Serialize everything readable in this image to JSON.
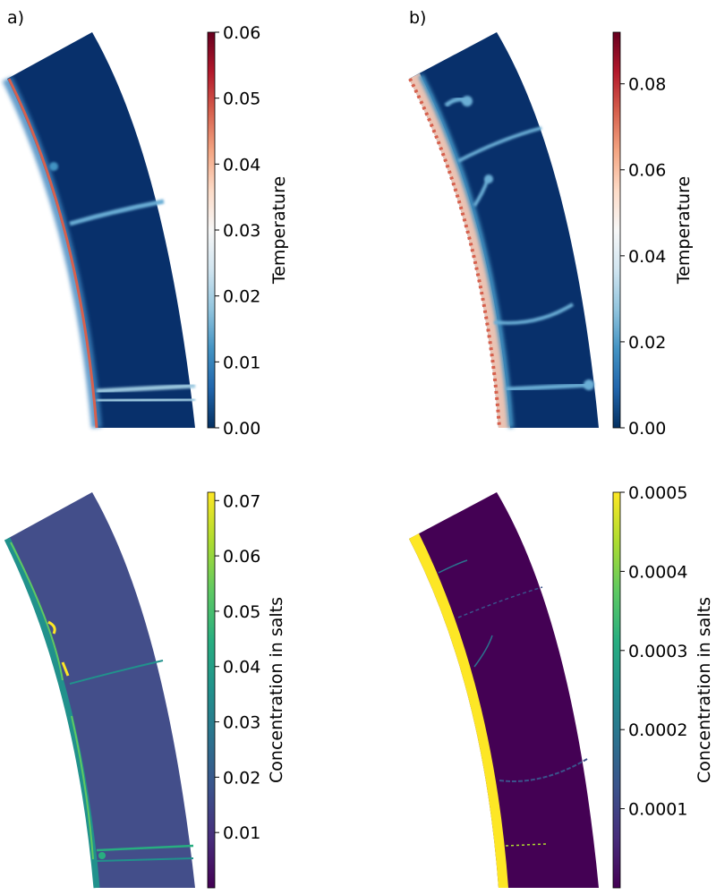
{
  "panel_labels": {
    "a": "a)",
    "b": "b)"
  },
  "chart_data": [
    {
      "type": "heatmap",
      "panel": "a)",
      "colorbar_label": "Temperature",
      "colormap": "RdBu_r",
      "range": [
        0.0,
        0.06
      ],
      "ticks": [
        0.0,
        0.01,
        0.02,
        0.03,
        0.04,
        0.05,
        0.06
      ],
      "tick_labels": [
        "0.00",
        "0.01",
        "0.02",
        "0.03",
        "0.04",
        "0.05",
        "0.06"
      ],
      "background_value": 0.0,
      "boundary_max_value": 0.06
    },
    {
      "type": "heatmap",
      "panel": "b)",
      "colorbar_label": "Temperature",
      "colormap": "RdBu_r",
      "range": [
        0.0,
        0.092
      ],
      "ticks": [
        0.0,
        0.02,
        0.04,
        0.06,
        0.08
      ],
      "tick_labels": [
        "0.00",
        "0.02",
        "0.04",
        "0.06",
        "0.08"
      ],
      "background_value": 0.0,
      "boundary_max_value": 0.092
    },
    {
      "type": "heatmap",
      "panel": "a)",
      "colorbar_label": "Concentration in salts",
      "colormap": "viridis",
      "range": [
        0.0,
        0.0715
      ],
      "ticks": [
        0.01,
        0.02,
        0.03,
        0.04,
        0.05,
        0.06,
        0.07
      ],
      "tick_labels": [
        "0.01",
        "0.02",
        "0.03",
        "0.04",
        "0.05",
        "0.06",
        "0.07"
      ],
      "background_value": 0.02
    },
    {
      "type": "heatmap",
      "panel": "b)",
      "colorbar_label": "Concentration in salts",
      "colormap": "viridis",
      "range": [
        0.0,
        0.0005
      ],
      "ticks": [
        0.0001,
        0.0002,
        0.0003,
        0.0004,
        0.0005
      ],
      "tick_labels": [
        "0.0001",
        "0.0002",
        "0.0003",
        "0.0004",
        "0.0005"
      ],
      "background_value": 0.0
    }
  ]
}
